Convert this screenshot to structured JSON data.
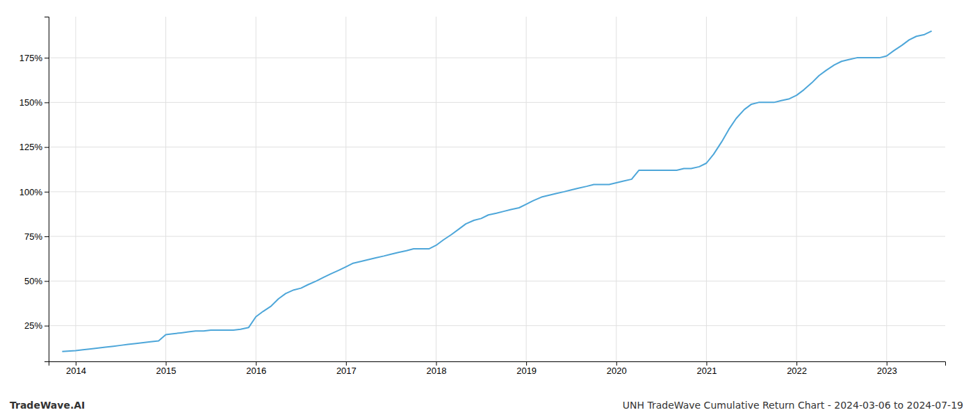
{
  "chart_data": {
    "type": "line",
    "title": "UNH TradeWave Cumulative Return Chart - 2024-03-06 to 2024-07-19",
    "annotations": [
      "TradeWave.AI"
    ],
    "color": "#4da6d9",
    "grid": true,
    "xlim": [
      2013.7,
      2023.65
    ],
    "xticks": [
      2014,
      2015,
      2016,
      2017,
      2018,
      2019,
      2020,
      2021,
      2022,
      2023
    ],
    "ylim": [
      5,
      198
    ],
    "yticks": [
      {
        "value": 25,
        "label": "25%"
      },
      {
        "value": 50,
        "label": "50%"
      },
      {
        "value": 75,
        "label": "75%"
      },
      {
        "value": 100,
        "label": "100%"
      },
      {
        "value": 125,
        "label": "125%"
      },
      {
        "value": 150,
        "label": "150%"
      },
      {
        "value": 175,
        "label": "175%"
      }
    ],
    "x": [
      2013.85,
      2014.0,
      2014.08,
      2014.17,
      2014.25,
      2014.33,
      2014.42,
      2014.5,
      2014.58,
      2014.67,
      2014.75,
      2014.83,
      2014.92,
      2015.0,
      2015.08,
      2015.17,
      2015.25,
      2015.33,
      2015.42,
      2015.5,
      2015.58,
      2015.67,
      2015.75,
      2015.83,
      2015.92,
      2016.0,
      2016.08,
      2016.17,
      2016.25,
      2016.33,
      2016.42,
      2016.5,
      2016.58,
      2016.67,
      2016.75,
      2016.83,
      2016.92,
      2017.0,
      2017.08,
      2017.17,
      2017.25,
      2017.33,
      2017.42,
      2017.5,
      2017.58,
      2017.67,
      2017.75,
      2017.83,
      2017.92,
      2018.0,
      2018.08,
      2018.17,
      2018.25,
      2018.33,
      2018.42,
      2018.5,
      2018.58,
      2018.67,
      2018.75,
      2018.83,
      2018.92,
      2019.0,
      2019.08,
      2019.17,
      2019.25,
      2019.33,
      2019.42,
      2019.5,
      2019.58,
      2019.67,
      2019.75,
      2019.83,
      2019.92,
      2020.0,
      2020.08,
      2020.17,
      2020.25,
      2020.33,
      2020.42,
      2020.5,
      2020.58,
      2020.67,
      2020.75,
      2020.83,
      2020.92,
      2021.0,
      2021.08,
      2021.17,
      2021.25,
      2021.33,
      2021.42,
      2021.5,
      2021.58,
      2021.67,
      2021.75,
      2021.83,
      2021.92,
      2022.0,
      2022.08,
      2022.17,
      2022.25,
      2022.33,
      2022.42,
      2022.5,
      2022.58,
      2022.67,
      2022.75,
      2022.83,
      2022.92,
      2023.0,
      2023.08,
      2023.17,
      2023.25,
      2023.33,
      2023.42,
      2023.5
    ],
    "values": [
      10.5,
      11,
      11.5,
      12,
      12.5,
      13,
      13.5,
      14,
      14.5,
      15,
      15.5,
      16,
      16.5,
      20,
      20.5,
      21,
      21.5,
      22,
      22,
      22.5,
      22.5,
      22.5,
      22.5,
      23,
      24,
      30,
      33,
      36,
      40,
      43,
      45,
      46,
      48,
      50,
      52,
      54,
      56,
      58,
      60,
      61,
      62,
      63,
      64,
      65,
      66,
      67,
      68,
      68,
      68,
      70,
      73,
      76,
      79,
      82,
      84,
      85,
      87,
      88,
      89,
      90,
      91,
      93,
      95,
      97,
      98,
      99,
      100,
      101,
      102,
      103,
      104,
      104,
      104,
      105,
      106,
      107,
      112,
      112,
      112,
      112,
      112,
      112,
      113,
      113,
      114,
      116,
      121,
      128,
      135,
      141,
      146,
      149,
      150,
      150,
      150,
      151,
      152,
      154,
      157,
      161,
      165,
      168,
      171,
      173,
      174,
      175,
      175,
      175,
      175,
      176,
      179,
      182,
      185,
      187,
      188,
      190
    ]
  }
}
